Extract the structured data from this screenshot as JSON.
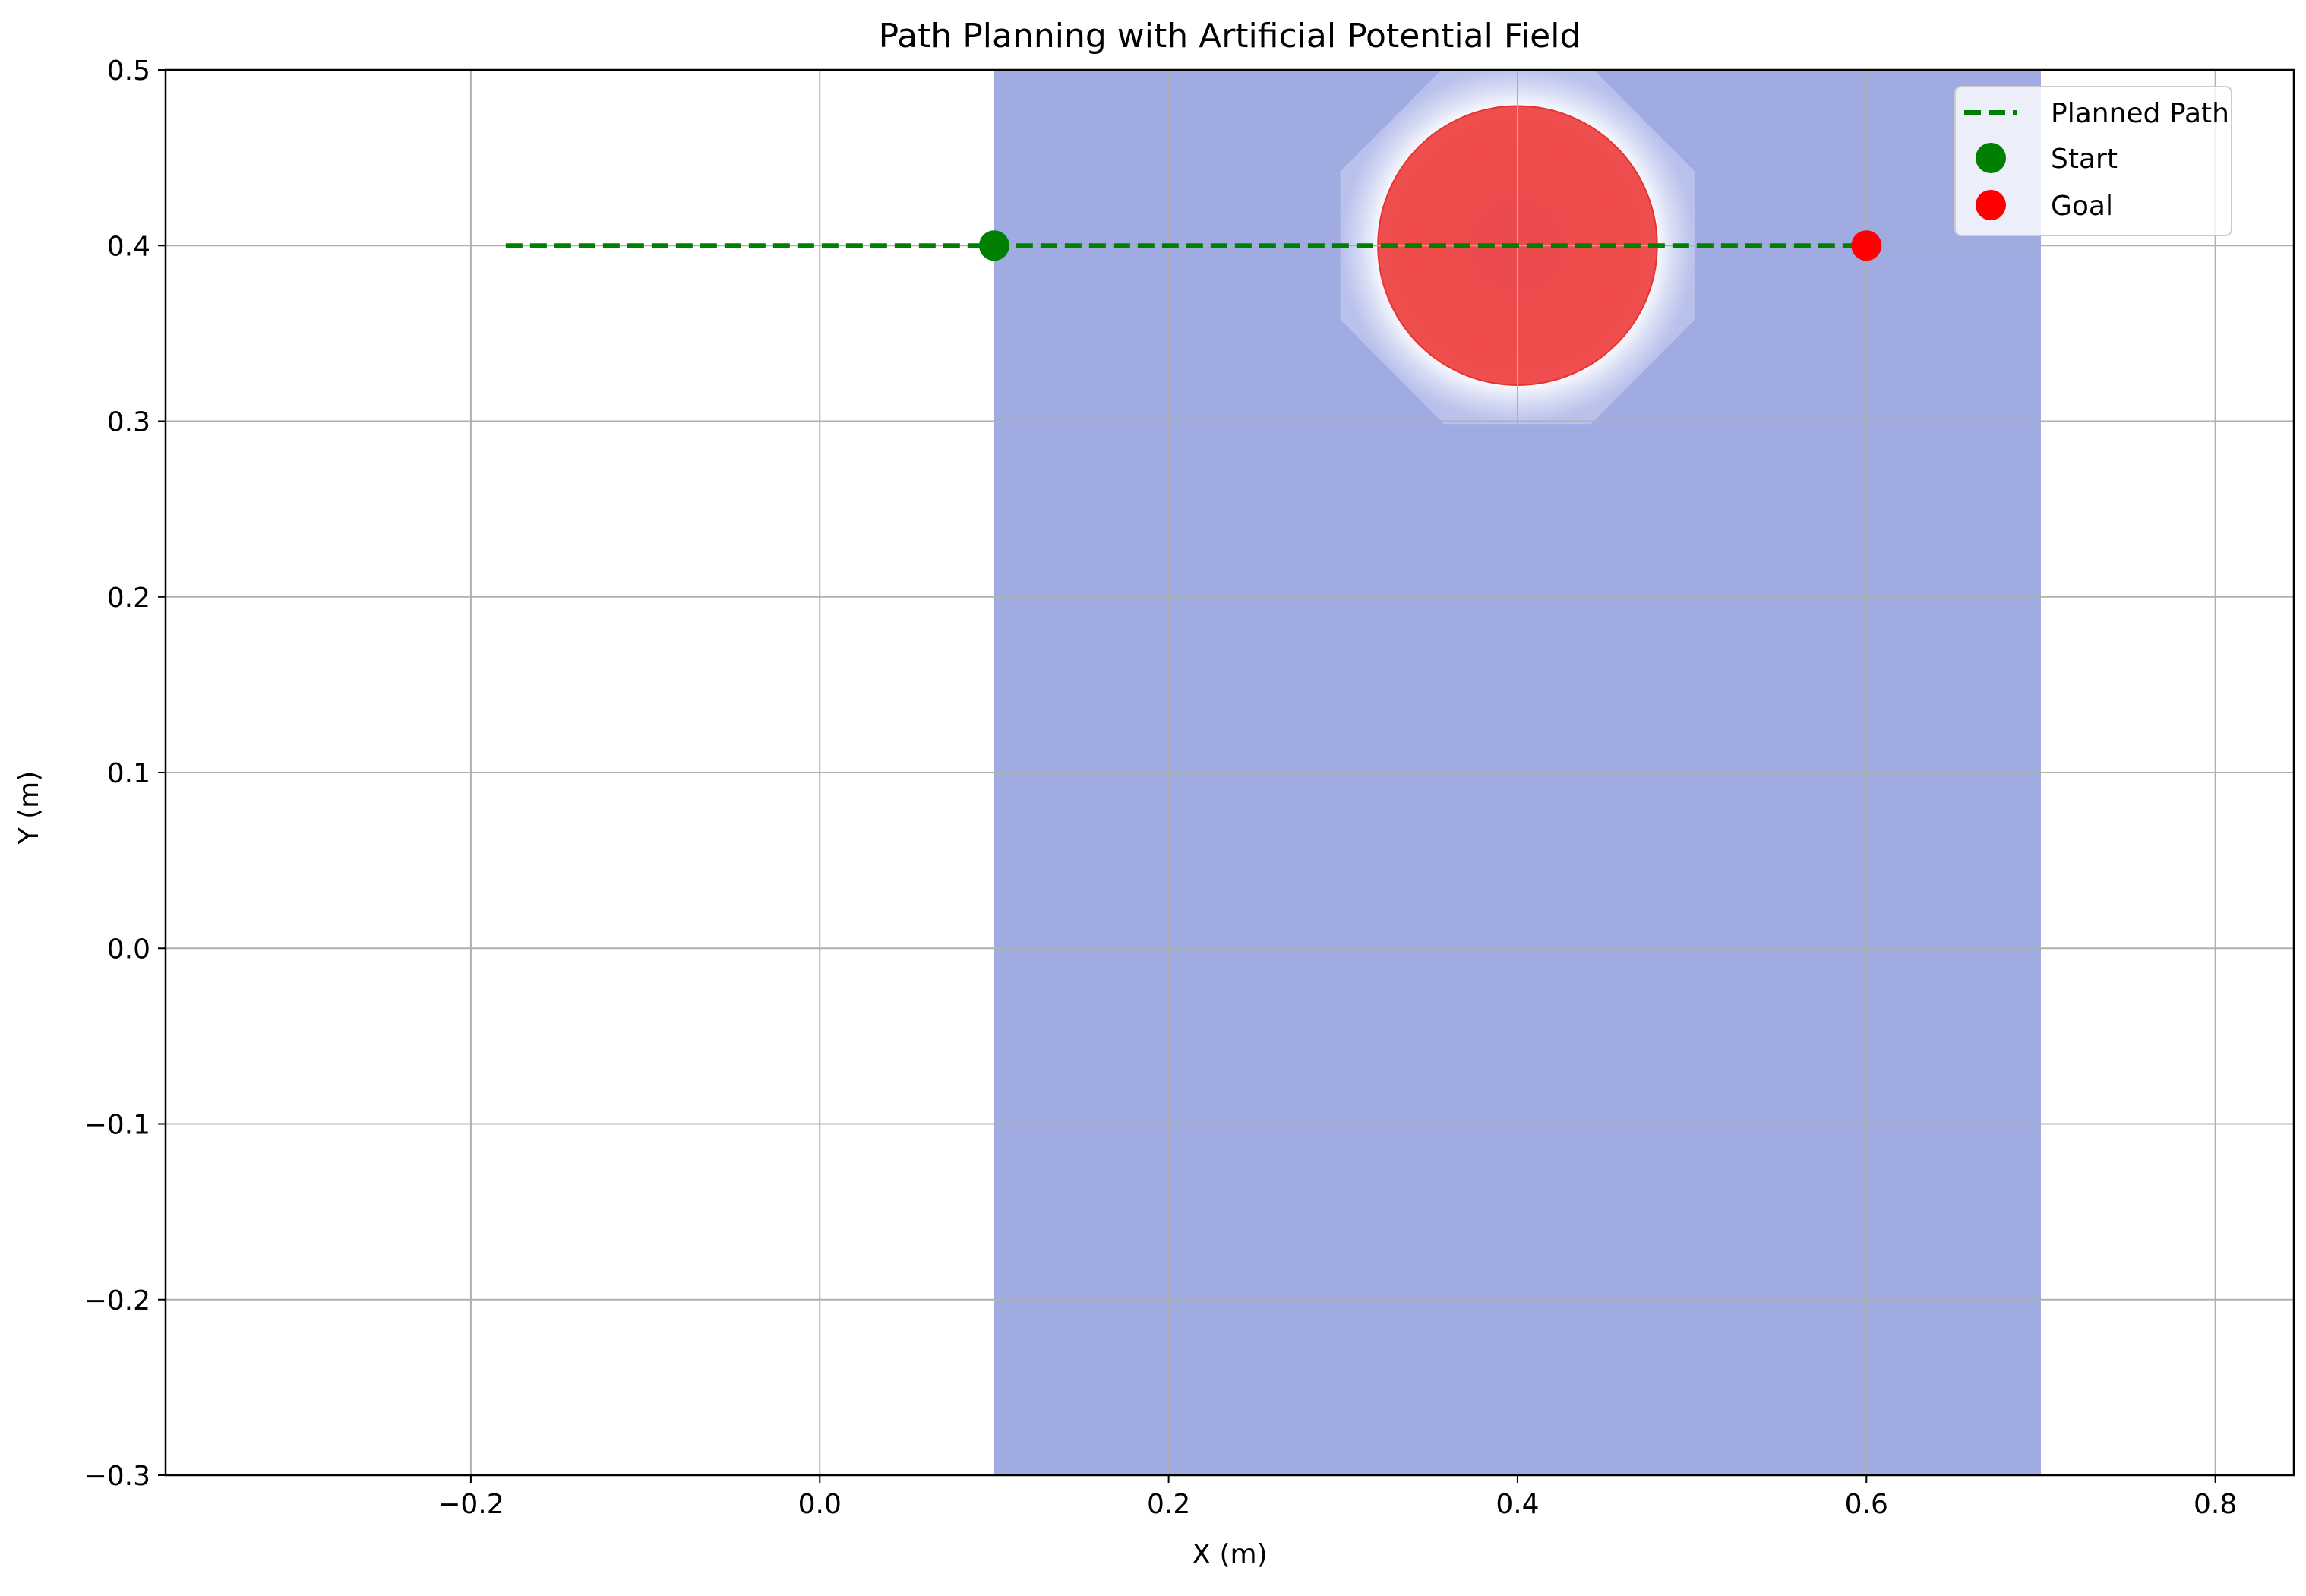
{
  "chart_data": {
    "type": "line",
    "title": "Path Planning with Artificial Potential Field",
    "xlabel": "X (m)",
    "ylabel": "Y (m)",
    "xlim": [
      -0.375,
      0.845
    ],
    "ylim": [
      -0.3,
      0.5
    ],
    "xticks": [
      -0.2,
      0.0,
      0.2,
      0.4,
      0.6,
      0.8
    ],
    "yticks": [
      -0.3,
      -0.2,
      -0.1,
      0.0,
      0.1,
      0.2,
      0.3,
      0.4,
      0.5
    ],
    "xtick_labels": [
      "−0.2",
      "0.0",
      "0.2",
      "0.4",
      "0.6",
      "0.8"
    ],
    "ytick_labels": [
      "−0.3",
      "−0.2",
      "−0.1",
      "0.0",
      "0.1",
      "0.2",
      "0.3",
      "0.4",
      "0.5"
    ],
    "grid": true,
    "legend_position": "top-right",
    "potential_field": {
      "x_range": [
        0.1,
        0.7
      ],
      "y_range": [
        -0.3,
        0.5
      ],
      "background_color": "#a0abe1",
      "obstacle_center": [
        0.4,
        0.4
      ],
      "obstacle_radius": 0.08,
      "obstacle_color": "#ee4444",
      "influence_radius": 0.11
    },
    "series": [
      {
        "name": "Planned Path",
        "style": "dashed",
        "color": "#008000",
        "x": [
          -0.18,
          0.6
        ],
        "y": [
          0.4,
          0.4
        ]
      },
      {
        "name": "Start",
        "style": "marker",
        "color": "#008000",
        "x": [
          0.1
        ],
        "y": [
          0.4
        ]
      },
      {
        "name": "Goal",
        "style": "marker",
        "color": "#ff0000",
        "x": [
          0.6
        ],
        "y": [
          0.4
        ]
      }
    ]
  }
}
